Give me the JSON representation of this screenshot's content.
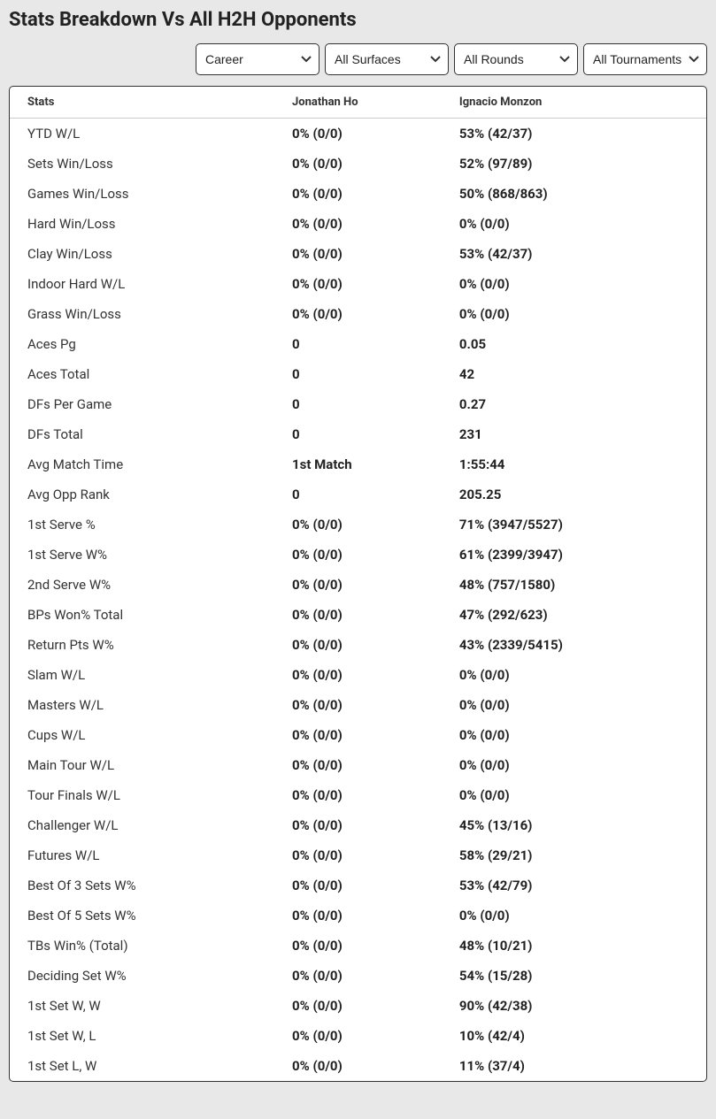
{
  "title": "Stats Breakdown Vs All H2H Opponents",
  "filters": {
    "career": "Career",
    "surfaces": "All Surfaces",
    "rounds": "All Rounds",
    "tournaments": "All Tournaments"
  },
  "columns": {
    "stats": "Stats",
    "player1": "Jonathan Ho",
    "player2": "Ignacio Monzon"
  },
  "rows": [
    {
      "stat": "YTD W/L",
      "p1": "0% (0/0)",
      "p2": "53% (42/37)"
    },
    {
      "stat": "Sets Win/Loss",
      "p1": "0% (0/0)",
      "p2": "52% (97/89)"
    },
    {
      "stat": "Games Win/Loss",
      "p1": "0% (0/0)",
      "p2": "50% (868/863)"
    },
    {
      "stat": "Hard Win/Loss",
      "p1": "0% (0/0)",
      "p2": "0% (0/0)"
    },
    {
      "stat": "Clay Win/Loss",
      "p1": "0% (0/0)",
      "p2": "53% (42/37)"
    },
    {
      "stat": "Indoor Hard W/L",
      "p1": "0% (0/0)",
      "p2": "0% (0/0)"
    },
    {
      "stat": "Grass Win/Loss",
      "p1": "0% (0/0)",
      "p2": "0% (0/0)"
    },
    {
      "stat": "Aces Pg",
      "p1": "0",
      "p2": "0.05"
    },
    {
      "stat": "Aces Total",
      "p1": "0",
      "p2": "42"
    },
    {
      "stat": "DFs Per Game",
      "p1": "0",
      "p2": "0.27"
    },
    {
      "stat": "DFs Total",
      "p1": "0",
      "p2": "231"
    },
    {
      "stat": "Avg Match Time",
      "p1": "1st Match",
      "p2": "1:55:44"
    },
    {
      "stat": "Avg Opp Rank",
      "p1": "0",
      "p2": "205.25"
    },
    {
      "stat": "1st Serve %",
      "p1": "0% (0/0)",
      "p2": "71% (3947/5527)"
    },
    {
      "stat": "1st Serve W%",
      "p1": "0% (0/0)",
      "p2": "61% (2399/3947)"
    },
    {
      "stat": "2nd Serve W%",
      "p1": "0% (0/0)",
      "p2": "48% (757/1580)"
    },
    {
      "stat": "BPs Won% Total",
      "p1": "0% (0/0)",
      "p2": "47% (292/623)"
    },
    {
      "stat": "Return Pts W%",
      "p1": "0% (0/0)",
      "p2": "43% (2339/5415)"
    },
    {
      "stat": "Slam W/L",
      "p1": "0% (0/0)",
      "p2": "0% (0/0)"
    },
    {
      "stat": "Masters W/L",
      "p1": "0% (0/0)",
      "p2": "0% (0/0)"
    },
    {
      "stat": "Cups W/L",
      "p1": "0% (0/0)",
      "p2": "0% (0/0)"
    },
    {
      "stat": "Main Tour W/L",
      "p1": "0% (0/0)",
      "p2": "0% (0/0)"
    },
    {
      "stat": "Tour Finals W/L",
      "p1": "0% (0/0)",
      "p2": "0% (0/0)"
    },
    {
      "stat": "Challenger W/L",
      "p1": "0% (0/0)",
      "p2": "45% (13/16)"
    },
    {
      "stat": "Futures W/L",
      "p1": "0% (0/0)",
      "p2": "58% (29/21)"
    },
    {
      "stat": "Best Of 3 Sets W%",
      "p1": "0% (0/0)",
      "p2": "53% (42/79)"
    },
    {
      "stat": "Best Of 5 Sets W%",
      "p1": "0% (0/0)",
      "p2": "0% (0/0)"
    },
    {
      "stat": "TBs Win% (Total)",
      "p1": "0% (0/0)",
      "p2": "48% (10/21)"
    },
    {
      "stat": "Deciding Set W%",
      "p1": "0% (0/0)",
      "p2": "54% (15/28)"
    },
    {
      "stat": "1st Set W, W",
      "p1": "0% (0/0)",
      "p2": "90% (42/38)"
    },
    {
      "stat": "1st Set W, L",
      "p1": "0% (0/0)",
      "p2": "10% (42/4)"
    },
    {
      "stat": "1st Set L, W",
      "p1": "0% (0/0)",
      "p2": "11% (37/4)"
    }
  ],
  "style": {
    "background_color": "#e8e8e8",
    "table_bg": "#ffffff",
    "border_color": "#333333",
    "header_divider": "#cccccc",
    "title_fontsize": 22,
    "header_fontsize": 13,
    "cell_fontsize": 15,
    "value_fontweight": 700,
    "label_color": "#333333",
    "value_color": "#222222"
  }
}
